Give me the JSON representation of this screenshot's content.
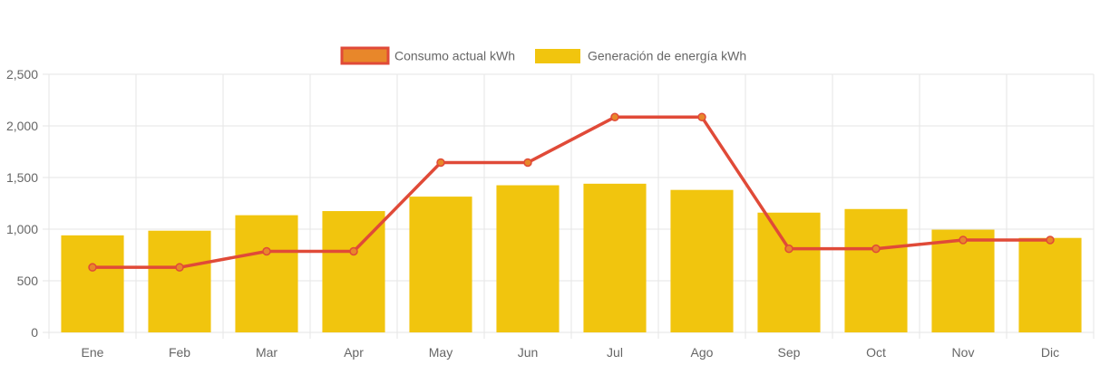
{
  "chart_data": {
    "type": "bar",
    "categories": [
      "Ene",
      "Feb",
      "Mar",
      "Apr",
      "May",
      "Jun",
      "Jul",
      "Ago",
      "Sep",
      "Oct",
      "Nov",
      "Dic"
    ],
    "series": [
      {
        "name": "Consumo actual kWh",
        "type": "line",
        "values": [
          630,
          630,
          785,
          785,
          1645,
          1645,
          2085,
          2085,
          810,
          810,
          895,
          895
        ],
        "line_color": "#e04a38",
        "point_color": "#e8872a"
      },
      {
        "name": "Generación de energía kWh",
        "type": "bar",
        "values": [
          940,
          985,
          1135,
          1175,
          1315,
          1425,
          1440,
          1380,
          1160,
          1195,
          995,
          915
        ],
        "color": "#f1c50e"
      }
    ],
    "ylim": [
      0,
      2500
    ],
    "yticks": [
      "0",
      "500",
      "1,000",
      "1,500",
      "2,000",
      "2,500"
    ],
    "ytick_values": [
      0,
      500,
      1000,
      1500,
      2000,
      2500
    ],
    "grid": true,
    "grid_color": "#e5e5e5",
    "legend_position": "top-center"
  }
}
